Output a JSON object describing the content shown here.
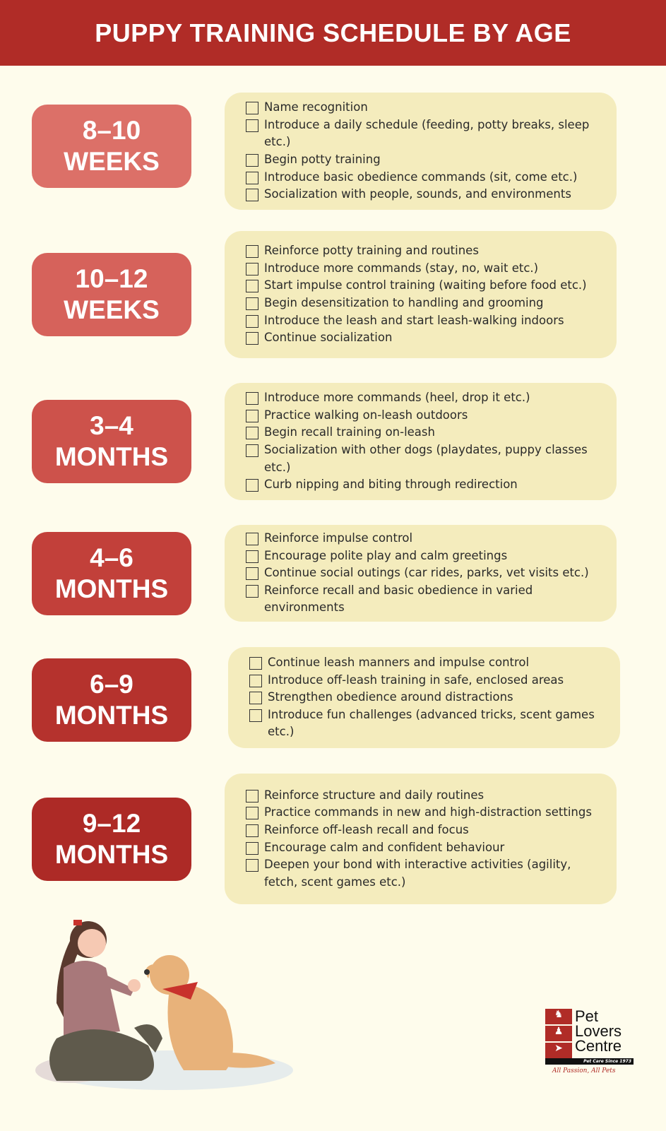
{
  "title": "PUPPY TRAINING SCHEDULE BY AGE",
  "stages": [
    {
      "range": "8–10",
      "unit": "WEEKS",
      "color": "#dc7068",
      "items": [
        "Name recognition",
        "Introduce a daily schedule (feeding, potty breaks, sleep etc.)",
        "Begin potty training",
        "Introduce basic obedience commands (sit, come etc.)",
        "Socialization with people, sounds, and environments"
      ]
    },
    {
      "range": "10–12",
      "unit": "WEEKS",
      "color": "#d6625b",
      "items": [
        "Reinforce potty training and routines",
        "Introduce more commands (stay, no, wait etc.)",
        "Start impulse control training (waiting before food etc.)",
        "Begin desensitization to handling and grooming",
        "Introduce the leash and start leash-walking indoors",
        "Continue socialization"
      ]
    },
    {
      "range": "3–4",
      "unit": "MONTHS",
      "color": "#cd524b",
      "items": [
        "Introduce more commands (heel, drop it etc.)",
        "Practice walking on-leash outdoors",
        "Begin recall training on-leash",
        "Socialization with other dogs (playdates, puppy classes etc.)",
        "Curb nipping and biting through redirection"
      ]
    },
    {
      "range": "4–6",
      "unit": "MONTHS",
      "color": "#c2403a",
      "items": [
        "Reinforce impulse control",
        "Encourage polite play and calm greetings",
        "Continue social outings (car rides, parks, vet visits etc.)",
        "Reinforce recall and basic obedience in varied environments"
      ]
    },
    {
      "range": "6–9",
      "unit": "MONTHS",
      "color": "#b5322d",
      "items": [
        "Continue leash manners and impulse control",
        "Introduce off-leash training in safe, enclosed areas",
        "Strengthen obedience around distractions",
        "Introduce fun challenges (advanced tricks, scent games etc.)"
      ]
    },
    {
      "range": "9–12",
      "unit": "MONTHS",
      "color": "#ad2a26",
      "items": [
        "Reinforce structure and daily routines",
        "Practice commands in new and high-distraction settings",
        "Reinforce off-leash recall and focus",
        "Encourage calm and confident behaviour",
        "Deepen your bond with interactive activities (agility, fetch, scent games etc.)"
      ]
    }
  ],
  "logo": {
    "line1": "Pet",
    "line2": "Lovers",
    "line3": "Centre",
    "tagline": "Pet Care Since 1973",
    "slogan": "All Passion, All Pets",
    "color": "#b02c27"
  }
}
